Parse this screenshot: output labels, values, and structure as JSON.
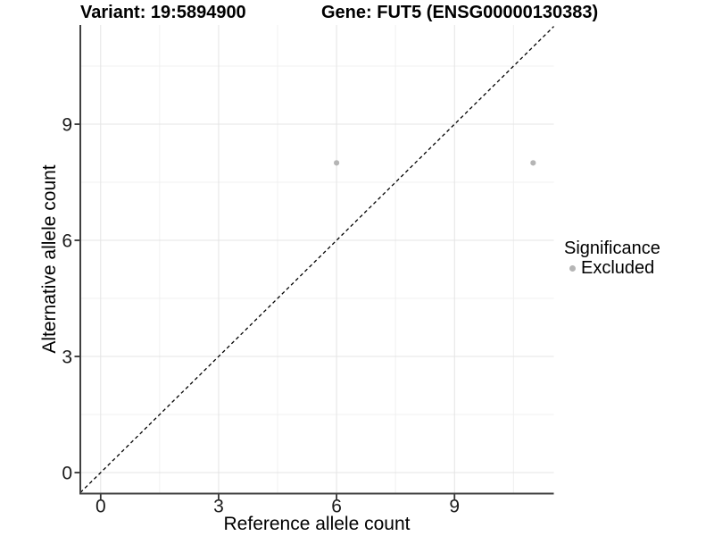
{
  "chart_data": {
    "type": "scatter",
    "title_left": "Variant: 19:5894900",
    "title_right": "Gene: FUT5 (ENSG00000130383)",
    "xlabel": "Reference allele count",
    "ylabel": "Alternative allele count",
    "xlim": [
      -0.52,
      11.53
    ],
    "ylim": [
      -0.54,
      11.56
    ],
    "x_ticks": [
      0,
      3,
      6,
      9
    ],
    "y_ticks": [
      0,
      3,
      6,
      9
    ],
    "x_minor_ticks": [
      1.5,
      4.5,
      7.5,
      10.5
    ],
    "y_minor_ticks": [
      1.5,
      4.5,
      7.5,
      10.5
    ],
    "grid": "major+minor",
    "identity_line": {
      "slope": 1,
      "intercept": 0,
      "style": "dashed",
      "color": "#000000"
    },
    "series": [
      {
        "name": "Excluded",
        "color": "#b5b5b5",
        "points": [
          [
            6,
            8
          ],
          [
            11,
            8
          ]
        ]
      }
    ],
    "legend": {
      "title": "Significance",
      "position": "right",
      "entries": [
        {
          "label": "Excluded",
          "color": "#b5b5b5"
        }
      ]
    }
  },
  "colors": {
    "background": "#ffffff",
    "axis_line": "#404040",
    "tick_mark": "#333333",
    "grid_major": "#e4e4e4",
    "grid_minor": "#f0f0f0",
    "tick_label": "#1a1a1a",
    "point": "#b5b5b5"
  }
}
